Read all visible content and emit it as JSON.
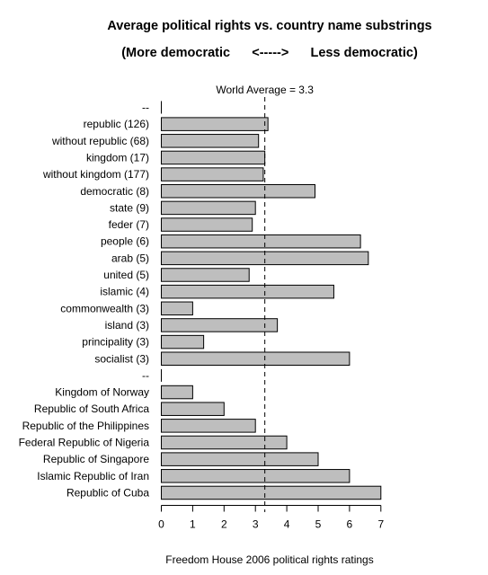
{
  "chart_data": {
    "type": "bar",
    "orientation": "horizontal",
    "title": "Average political rights vs. country name substrings",
    "subtitle": "(More democratic      <----->      Less democratic)",
    "xlabel": "Freedom House 2006 political rights ratings",
    "xlim": [
      0,
      7
    ],
    "xticks": [
      0,
      1,
      2,
      3,
      4,
      5,
      6,
      7
    ],
    "reference_line": {
      "label": "World Average = 3.3",
      "value": 3.3
    },
    "bar_color": "#bebebe",
    "categories": [
      "--",
      "republic (126)",
      "without republic (68)",
      "kingdom (17)",
      "without kingdom (177)",
      "democratic (8)",
      "state (9)",
      "feder (7)",
      "people (6)",
      "arab (5)",
      "united (5)",
      "islamic (4)",
      "commonwealth (3)",
      "island (3)",
      "principality (3)",
      "socialist (3)",
      "--",
      "Kingdom of Norway",
      "Republic of South Africa",
      "Republic of the Philippines",
      "Federal Republic of Nigeria",
      "Republic of Singapore",
      "Islamic Republic of Iran",
      "Republic of Cuba"
    ],
    "values": [
      null,
      3.4,
      3.1,
      3.3,
      3.25,
      4.9,
      3.0,
      2.9,
      6.35,
      6.6,
      2.8,
      5.5,
      1.0,
      3.7,
      1.35,
      6.0,
      null,
      1.0,
      2.0,
      3.0,
      4.0,
      5.0,
      6.0,
      7.0
    ]
  }
}
